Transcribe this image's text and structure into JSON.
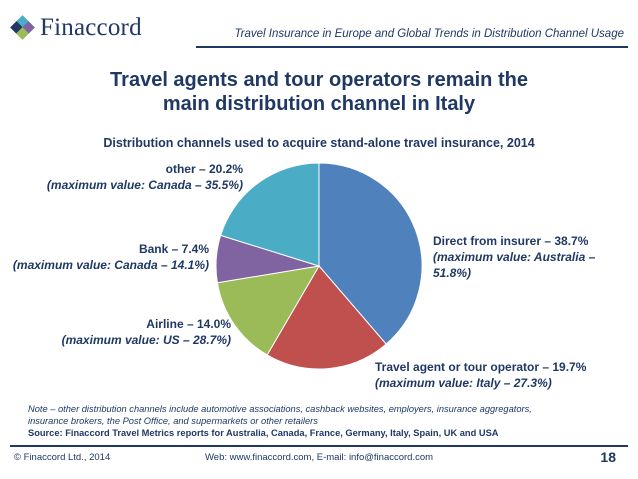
{
  "brand": {
    "name": "Finaccord",
    "logo_colors": [
      "#1f3864",
      "#4bacc6",
      "#8064a2",
      "#9bbb59"
    ]
  },
  "header": {
    "title": "Travel Insurance in Europe and Global Trends in Distribution Channel Usage"
  },
  "headline": {
    "line1": "Travel agents and tour operators remain the",
    "line2": "main distribution channel in Italy"
  },
  "chart_data": {
    "type": "pie",
    "title": "Distribution channels used to acquire stand-alone travel insurance, 2014",
    "slices": [
      {
        "name": "Direct from insurer",
        "value": 38.7,
        "color": "#4f81bd",
        "label": "Direct from insurer  – 38.7%",
        "max_line1": "(maximum value: Australia –",
        "max_line2": "51.8%)"
      },
      {
        "name": "Travel agent or tour operator",
        "value": 19.7,
        "color": "#c0504d",
        "label": "Travel agent or tour operator – 19.7%",
        "max_line1": "(maximum value: Italy – 27.3%)"
      },
      {
        "name": "Airline",
        "value": 14.0,
        "color": "#9bbb59",
        "label": "Airline – 14.0%",
        "max_line1": "(maximum value: US – 28.7%)"
      },
      {
        "name": "Bank",
        "value": 7.4,
        "color": "#8064a2",
        "label": "Bank – 7.4%",
        "max_line1": "(maximum value: Canada – 14.1%)"
      },
      {
        "name": "other",
        "value": 20.2,
        "color": "#4bacc6",
        "label": "other – 20.2%",
        "max_line1": "(maximum value: Canada – 35.5%)"
      }
    ]
  },
  "notes": {
    "note_line1": "Note – other distribution channels include automotive associations, cashback websites, employers, insurance aggregators,",
    "note_line2": "insurance brokers, the Post Office, and supermarkets or other retailers",
    "source": "Source: Finaccord Travel Metrics reports for Australia, Canada, France, Germany, Italy, Spain, UK and USA"
  },
  "footer": {
    "copyright": "© Finaccord Ltd., 2014",
    "contact": "Web: www.finaccord.com, E-mail: info@finaccord.com",
    "page_number": "18"
  }
}
